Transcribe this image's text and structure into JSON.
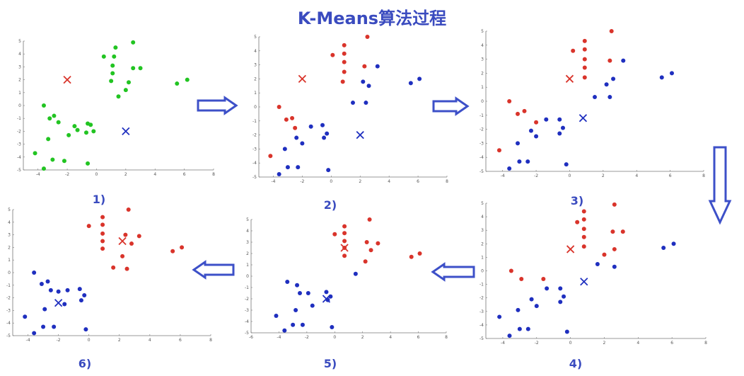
{
  "title": "K-Means算法过程",
  "colors": {
    "green": "#22c422",
    "red": "#d9342b",
    "blue": "#1f2fbf",
    "arrow": "#3d50c8",
    "title": "#3a4bbf"
  },
  "arrows": [
    {
      "direction": "right",
      "from": "1)",
      "to": "2)"
    },
    {
      "direction": "right",
      "from": "2)",
      "to": "3)"
    },
    {
      "direction": "down",
      "from": "3)",
      "to": "4)"
    },
    {
      "direction": "left",
      "from": "4)",
      "to": "5)"
    },
    {
      "direction": "left",
      "from": "5)",
      "to": "6)"
    }
  ],
  "chart_data": [
    {
      "type": "scatter",
      "label": "1)",
      "xlim": [
        -5,
        8
      ],
      "ylim": [
        -5,
        5
      ],
      "xticks": [
        "-4",
        "-2",
        "0",
        "2",
        "4",
        "6",
        "8"
      ],
      "yticks": [
        "5",
        "4",
        "3",
        "2",
        "1",
        "0",
        "-1",
        "-2",
        "-3",
        "-4",
        "-5"
      ],
      "series": [
        {
          "color": "green",
          "points": [
            [
              -4.2,
              -3.7
            ],
            [
              -3.6,
              -4.9
            ],
            [
              -3.3,
              -2.6
            ],
            [
              -3.0,
              -4.2
            ],
            [
              -2.2,
              -4.3
            ],
            [
              -1.9,
              -2.3
            ],
            [
              -1.5,
              -1.6
            ],
            [
              -1.3,
              -1.9
            ],
            [
              -0.6,
              -1.4
            ],
            [
              -0.6,
              -4.5
            ],
            [
              -3.6,
              0.0
            ],
            [
              -3.2,
              -1.0
            ],
            [
              -2.9,
              -0.8
            ],
            [
              -2.6,
              -1.3
            ],
            [
              -0.7,
              -2.1
            ],
            [
              -0.4,
              -1.5
            ],
            [
              -0.2,
              -2.0
            ],
            [
              1.3,
              4.5
            ],
            [
              0.5,
              3.8
            ],
            [
              1.2,
              3.8
            ],
            [
              1.1,
              3.1
            ],
            [
              1.1,
              2.5
            ],
            [
              1.0,
              1.9
            ],
            [
              2.5,
              4.9
            ],
            [
              2.5,
              2.9
            ],
            [
              3.0,
              2.9
            ],
            [
              2.2,
              1.8
            ],
            [
              2.0,
              1.2
            ],
            [
              1.5,
              0.7
            ],
            [
              5.5,
              1.7
            ],
            [
              6.2,
              2.0
            ]
          ]
        },
        {
          "color": "red",
          "marker": "x",
          "points": [
            [
              -2.0,
              2.0
            ]
          ]
        },
        {
          "color": "blue",
          "marker": "x",
          "points": [
            [
              2.0,
              -2.0
            ]
          ]
        }
      ]
    },
    {
      "type": "scatter",
      "label": "2)",
      "xlim": [
        -5,
        8
      ],
      "ylim": [
        -5,
        5
      ],
      "xticks": [
        "-4",
        "-2",
        "0",
        "2",
        "4",
        "6",
        "8"
      ],
      "yticks": [
        "5",
        "4",
        "3",
        "2",
        "1",
        "0",
        "-1",
        "-2",
        "-3",
        "-4",
        "-5"
      ],
      "series": [
        {
          "color": "red",
          "points": [
            [
              -4.2,
              -3.5
            ],
            [
              -3.6,
              0.0
            ],
            [
              -3.1,
              -0.9
            ],
            [
              -2.7,
              -0.8
            ],
            [
              -2.5,
              -1.5
            ],
            [
              0.1,
              3.7
            ],
            [
              0.9,
              4.4
            ],
            [
              0.9,
              3.8
            ],
            [
              0.9,
              3.2
            ],
            [
              0.9,
              2.5
            ],
            [
              0.8,
              1.8
            ],
            [
              2.5,
              5.0
            ],
            [
              2.3,
              2.9
            ]
          ]
        },
        {
          "color": "blue",
          "points": [
            [
              -3.6,
              -4.8
            ],
            [
              -3.0,
              -4.3
            ],
            [
              -2.3,
              -4.3
            ],
            [
              -0.2,
              -4.5
            ],
            [
              -3.2,
              -3.0
            ],
            [
              -2.4,
              -2.2
            ],
            [
              -2.0,
              -2.6
            ],
            [
              -1.4,
              -1.4
            ],
            [
              -0.6,
              -1.3
            ],
            [
              -0.3,
              -1.9
            ],
            [
              -0.5,
              -2.2
            ],
            [
              1.5,
              0.3
            ],
            [
              2.2,
              1.8
            ],
            [
              2.6,
              1.5
            ],
            [
              3.2,
              2.9
            ],
            [
              2.4,
              0.3
            ],
            [
              5.5,
              1.7
            ],
            [
              6.1,
              2.0
            ]
          ]
        },
        {
          "color": "red",
          "marker": "x",
          "points": [
            [
              -2.0,
              2.0
            ]
          ]
        },
        {
          "color": "blue",
          "marker": "x",
          "points": [
            [
              2.0,
              -2.0
            ]
          ]
        }
      ]
    },
    {
      "type": "scatter",
      "label": "3)",
      "xlim": [
        -5,
        8
      ],
      "ylim": [
        -5,
        5
      ],
      "xticks": [
        "-4",
        "-2",
        "0",
        "2",
        "4",
        "6",
        "8"
      ],
      "yticks": [
        "5",
        "4",
        "3",
        "2",
        "1",
        "0",
        "-1",
        "-2",
        "-3",
        "-4",
        "-5"
      ],
      "series": [
        {
          "color": "red",
          "points": [
            [
              -4.2,
              -3.5
            ],
            [
              -3.6,
              0.0
            ],
            [
              -3.1,
              -0.9
            ],
            [
              -2.7,
              -0.7
            ],
            [
              -2.0,
              -1.5
            ],
            [
              0.2,
              3.6
            ],
            [
              0.9,
              4.3
            ],
            [
              0.9,
              3.7
            ],
            [
              0.9,
              3.0
            ],
            [
              0.9,
              2.4
            ],
            [
              0.9,
              1.7
            ],
            [
              2.5,
              5.0
            ],
            [
              2.4,
              2.9
            ]
          ]
        },
        {
          "color": "blue",
          "points": [
            [
              -3.6,
              -4.8
            ],
            [
              -3.0,
              -4.3
            ],
            [
              -2.5,
              -4.3
            ],
            [
              -0.2,
              -4.5
            ],
            [
              -3.1,
              -3.0
            ],
            [
              -2.3,
              -2.1
            ],
            [
              -2.0,
              -2.5
            ],
            [
              -1.4,
              -1.3
            ],
            [
              -0.6,
              -1.3
            ],
            [
              -0.4,
              -1.9
            ],
            [
              -0.6,
              -2.3
            ],
            [
              1.5,
              0.3
            ],
            [
              2.2,
              1.2
            ],
            [
              2.6,
              1.6
            ],
            [
              3.2,
              2.9
            ],
            [
              2.4,
              0.3
            ],
            [
              5.5,
              1.7
            ],
            [
              6.1,
              2.0
            ]
          ]
        },
        {
          "color": "red",
          "marker": "x",
          "points": [
            [
              0.0,
              1.6
            ]
          ]
        },
        {
          "color": "blue",
          "marker": "x",
          "points": [
            [
              0.8,
              -1.2
            ]
          ]
        }
      ]
    },
    {
      "type": "scatter",
      "label": "4)",
      "xlim": [
        -5,
        8
      ],
      "ylim": [
        -5,
        5
      ],
      "xticks": [
        "-4",
        "-2",
        "0",
        "2",
        "4",
        "6",
        "8"
      ],
      "yticks": [
        "5",
        "4",
        "3",
        "2",
        "1",
        "0",
        "-1",
        "-2",
        "-3",
        "-4",
        "-5"
      ],
      "series": [
        {
          "color": "red",
          "points": [
            [
              -3.5,
              0.0
            ],
            [
              -2.9,
              -0.6
            ],
            [
              -1.6,
              -0.6
            ],
            [
              0.4,
              3.6
            ],
            [
              0.8,
              4.4
            ],
            [
              0.8,
              3.8
            ],
            [
              0.8,
              3.1
            ],
            [
              0.8,
              2.5
            ],
            [
              0.8,
              1.8
            ],
            [
              2.6,
              4.9
            ],
            [
              2.5,
              2.9
            ],
            [
              3.1,
              2.9
            ],
            [
              2.0,
              1.2
            ],
            [
              2.6,
              1.6
            ]
          ]
        },
        {
          "color": "blue",
          "points": [
            [
              -4.2,
              -3.4
            ],
            [
              -3.6,
              -4.8
            ],
            [
              -3.0,
              -4.3
            ],
            [
              -2.5,
              -4.3
            ],
            [
              -0.2,
              -4.5
            ],
            [
              -3.1,
              -2.9
            ],
            [
              -2.3,
              -2.1
            ],
            [
              -2.0,
              -2.6
            ],
            [
              -1.4,
              -1.3
            ],
            [
              -0.6,
              -1.3
            ],
            [
              -0.4,
              -1.9
            ],
            [
              -0.6,
              -2.3
            ],
            [
              1.6,
              0.5
            ],
            [
              2.6,
              0.3
            ],
            [
              5.5,
              1.7
            ],
            [
              6.1,
              2.0
            ]
          ]
        },
        {
          "color": "red",
          "marker": "x",
          "points": [
            [
              0.0,
              1.6
            ]
          ]
        },
        {
          "color": "blue",
          "marker": "x",
          "points": [
            [
              0.8,
              -0.8
            ]
          ]
        }
      ]
    },
    {
      "type": "scatter",
      "label": "5)",
      "xlim": [
        -6,
        8
      ],
      "ylim": [
        -5,
        5
      ],
      "xticks": [
        "-6",
        "-4",
        "-2",
        "0",
        "2",
        "4",
        "6",
        "8"
      ],
      "yticks": [
        "5",
        "4",
        "3",
        "2",
        "1",
        "0",
        "-1",
        "-2",
        "-3",
        "-4",
        "-5"
      ],
      "series": [
        {
          "color": "red",
          "points": [
            [
              0.0,
              3.7
            ],
            [
              0.7,
              4.4
            ],
            [
              0.7,
              3.8
            ],
            [
              0.7,
              3.1
            ],
            [
              0.7,
              2.5
            ],
            [
              0.7,
              1.8
            ],
            [
              2.5,
              5.0
            ],
            [
              2.3,
              3.0
            ],
            [
              2.6,
              2.3
            ],
            [
              3.1,
              2.9
            ],
            [
              2.2,
              1.3
            ],
            [
              5.5,
              1.7
            ],
            [
              6.1,
              2.0
            ]
          ]
        },
        {
          "color": "blue",
          "points": [
            [
              -4.2,
              -3.5
            ],
            [
              -3.6,
              -4.8
            ],
            [
              -3.0,
              -4.3
            ],
            [
              -2.3,
              -4.3
            ],
            [
              -0.2,
              -4.5
            ],
            [
              -3.4,
              -0.5
            ],
            [
              -2.7,
              -0.8
            ],
            [
              -2.5,
              -1.5
            ],
            [
              -1.9,
              -1.5
            ],
            [
              -1.6,
              -2.6
            ],
            [
              -0.6,
              -1.4
            ],
            [
              -0.5,
              -2.1
            ],
            [
              -0.3,
              -1.8
            ],
            [
              -2.8,
              -3.0
            ],
            [
              1.5,
              0.2
            ]
          ]
        },
        {
          "color": "red",
          "marker": "x",
          "points": [
            [
              0.7,
              2.5
            ]
          ]
        },
        {
          "color": "blue",
          "marker": "x",
          "points": [
            [
              -0.6,
              -2.0
            ]
          ]
        }
      ]
    },
    {
      "type": "scatter",
      "label": "6)",
      "xlim": [
        -5,
        8
      ],
      "ylim": [
        -5,
        5
      ],
      "xticks": [
        "-4",
        "-2",
        "0",
        "2",
        "4",
        "6",
        "8"
      ],
      "yticks": [
        "5",
        "4",
        "3",
        "2",
        "1",
        "0",
        "-1",
        "-2",
        "-3",
        "-4",
        "-5"
      ],
      "series": [
        {
          "color": "red",
          "points": [
            [
              0.0,
              3.7
            ],
            [
              0.9,
              4.4
            ],
            [
              0.9,
              3.8
            ],
            [
              0.9,
              3.1
            ],
            [
              0.9,
              2.5
            ],
            [
              0.9,
              1.9
            ],
            [
              2.6,
              5.0
            ],
            [
              2.4,
              3.0
            ],
            [
              2.8,
              2.3
            ],
            [
              3.3,
              2.9
            ],
            [
              2.2,
              1.3
            ],
            [
              1.6,
              0.4
            ],
            [
              2.5,
              0.3
            ],
            [
              5.5,
              1.7
            ],
            [
              6.1,
              2.0
            ]
          ]
        },
        {
          "color": "blue",
          "points": [
            [
              -4.2,
              -3.5
            ],
            [
              -3.6,
              -4.8
            ],
            [
              -3.0,
              -4.3
            ],
            [
              -2.3,
              -4.3
            ],
            [
              -0.2,
              -4.5
            ],
            [
              -3.6,
              0.0
            ],
            [
              -3.1,
              -0.9
            ],
            [
              -2.7,
              -0.7
            ],
            [
              -2.5,
              -1.4
            ],
            [
              -2.0,
              -1.5
            ],
            [
              -1.6,
              -2.5
            ],
            [
              -0.6,
              -1.3
            ],
            [
              -0.3,
              -1.8
            ],
            [
              -0.5,
              -2.2
            ],
            [
              -2.9,
              -2.9
            ],
            [
              -1.4,
              -1.4
            ]
          ]
        },
        {
          "color": "red",
          "marker": "x",
          "points": [
            [
              2.2,
              2.5
            ]
          ]
        },
        {
          "color": "blue",
          "marker": "x",
          "points": [
            [
              -2.0,
              -2.4
            ]
          ]
        }
      ]
    }
  ]
}
